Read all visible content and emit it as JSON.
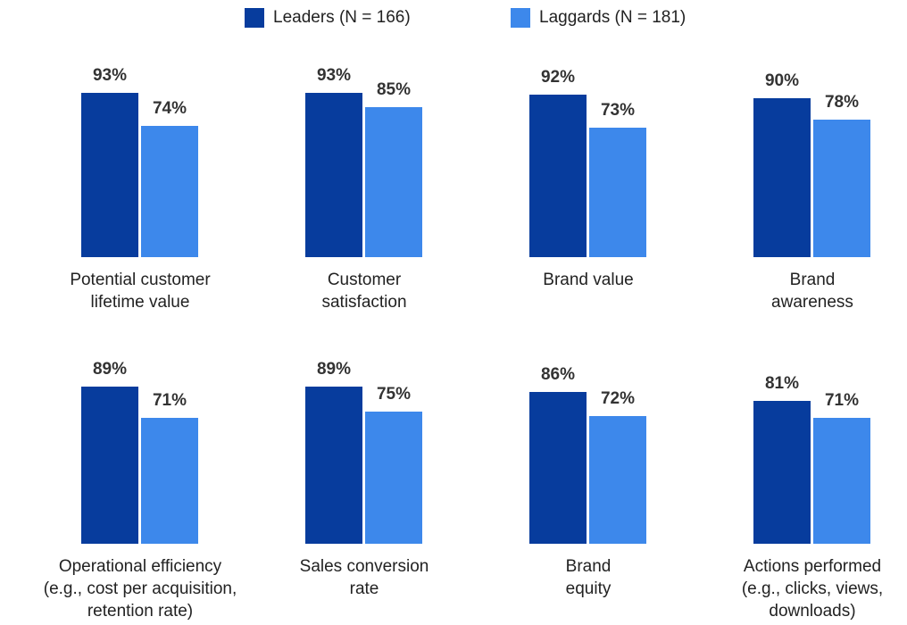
{
  "chart_data": {
    "type": "bar",
    "categories": [
      "Potential customer\nlifetime value",
      "Customer\nsatisfaction",
      "Brand value",
      "Brand\nawareness",
      "Operational efficiency\n(e.g., cost per acquisition,\nretention rate)",
      "Sales conversion\nrate",
      "Brand\nequity",
      "Actions performed\n(e.g., clicks, views,\ndownloads)"
    ],
    "series": [
      {
        "name": "Leaders (N = 166)",
        "color": "#073c9d",
        "values": [
          93,
          93,
          92,
          90,
          89,
          89,
          86,
          81
        ],
        "value_labels": [
          "93%",
          "93%",
          "92%",
          "90%",
          "89%",
          "89%",
          "86%",
          "81%"
        ]
      },
      {
        "name": "Laggards (N = 181)",
        "color": "#3d88eb",
        "values": [
          74,
          85,
          73,
          78,
          71,
          75,
          72,
          71
        ],
        "value_labels": [
          "74%",
          "85%",
          "73%",
          "78%",
          "71%",
          "75%",
          "72%",
          "71%"
        ]
      }
    ]
  }
}
